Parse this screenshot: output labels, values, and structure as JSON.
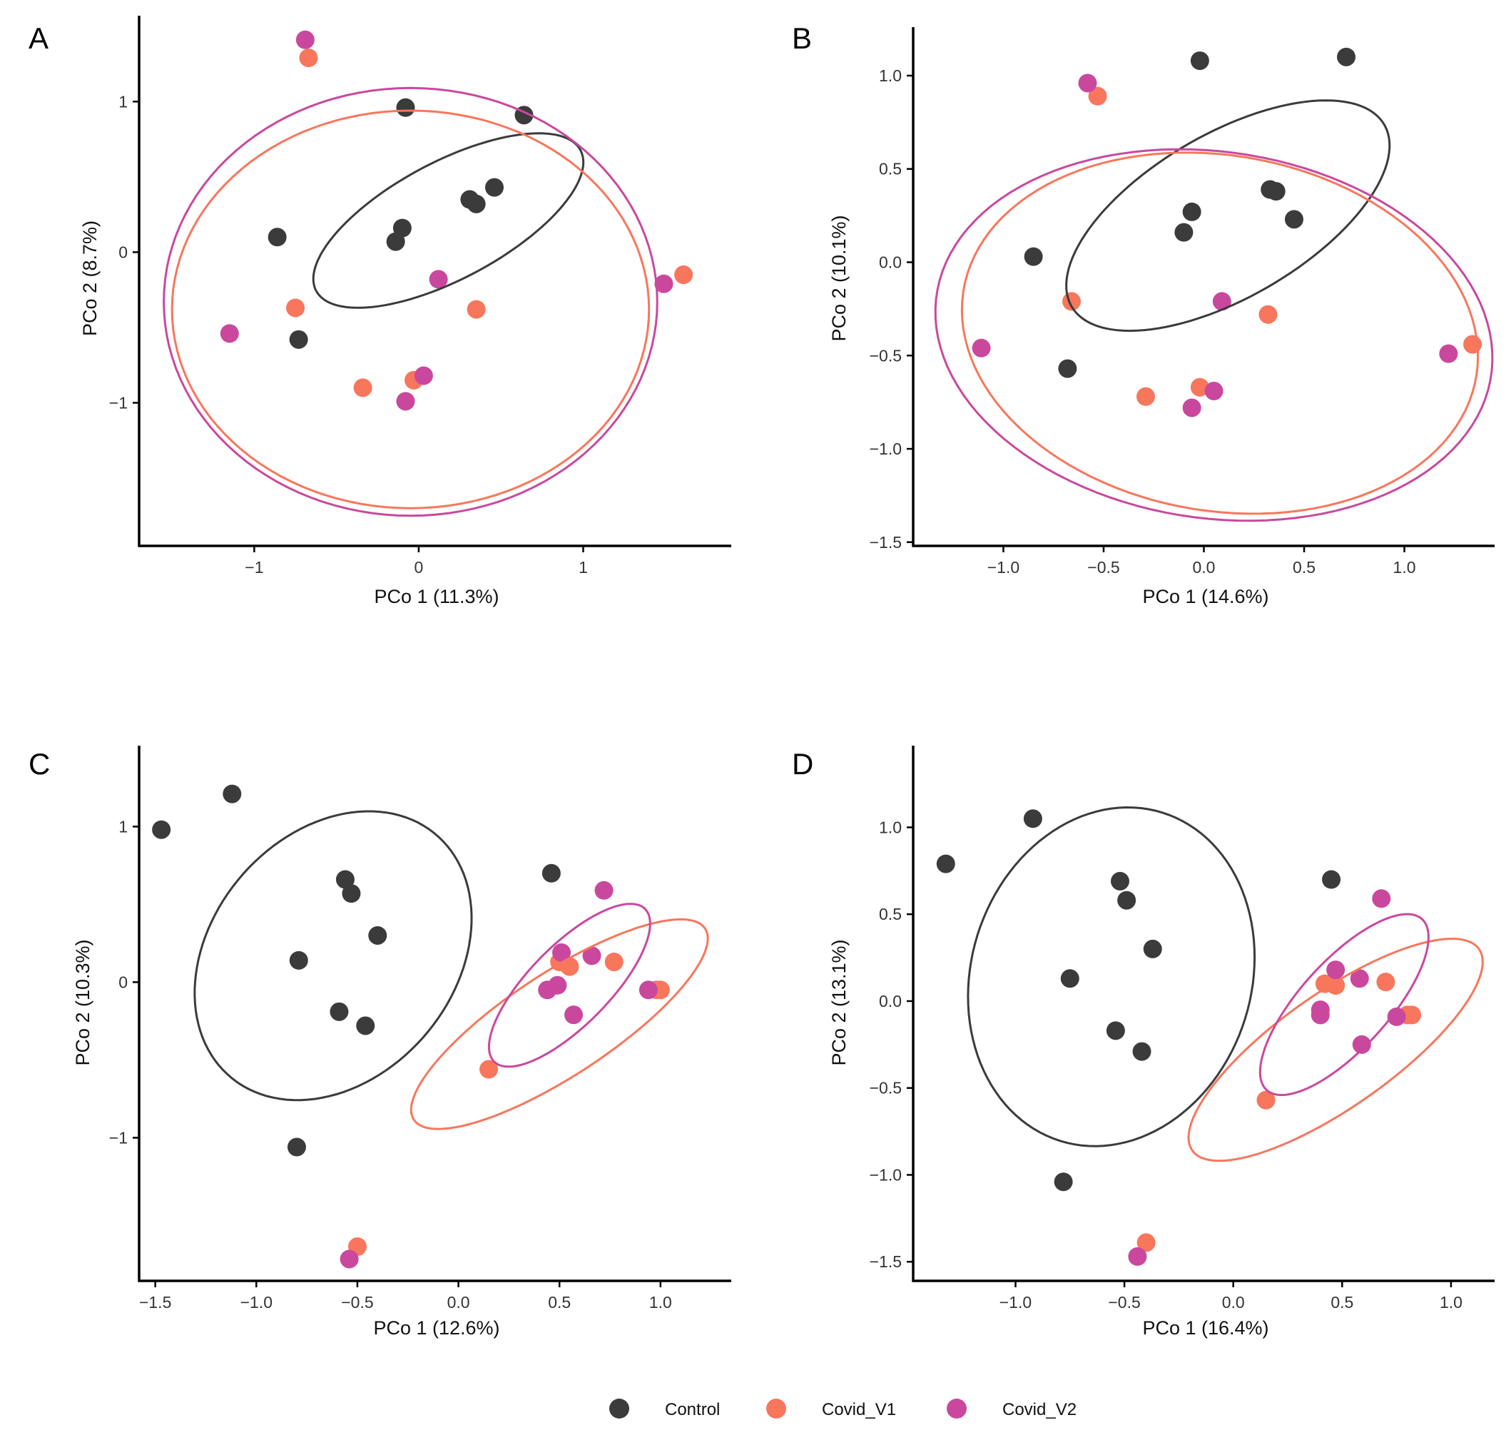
{
  "legend": {
    "items": [
      {
        "label": "Control",
        "color": "#3b3b3b"
      },
      {
        "label": "Covid_V1",
        "color": "#f8765c"
      },
      {
        "label": "Covid_V2",
        "color": "#c9489e"
      }
    ]
  },
  "chart_data": [
    {
      "panel": "A",
      "type": "scatter",
      "title": "",
      "xlabel": "PCo 1 (11.3%)",
      "ylabel": "PCo 2 (8.7%)",
      "xlim": [
        -1.7,
        1.9
      ],
      "ylim": [
        -1.95,
        1.57
      ],
      "xticks": [
        {
          "value": -1,
          "label": "−1"
        },
        {
          "value": 0,
          "label": "0"
        },
        {
          "value": 1,
          "label": "1"
        }
      ],
      "yticks": [
        {
          "value": -1,
          "label": "−1"
        },
        {
          "value": 0,
          "label": "0"
        },
        {
          "value": 1,
          "label": "1"
        }
      ],
      "series": [
        {
          "name": "Control",
          "color": "#3b3b3b",
          "points": [
            [
              -0.08,
              0.96
            ],
            [
              0.64,
              0.91
            ],
            [
              0.46,
              0.43
            ],
            [
              0.31,
              0.35
            ],
            [
              0.35,
              0.32
            ],
            [
              -0.1,
              0.16
            ],
            [
              -0.14,
              0.07
            ],
            [
              -0.86,
              0.1
            ],
            [
              -0.73,
              -0.58
            ]
          ],
          "ellipse": {
            "cx": 0.18,
            "cy": 0.21,
            "rx": 0.93,
            "ry": 0.38,
            "angle_deg": 31
          }
        },
        {
          "name": "Covid_V1",
          "color": "#f8765c",
          "points": [
            [
              -0.67,
              1.29
            ],
            [
              1.61,
              -0.15
            ],
            [
              -0.75,
              -0.37
            ],
            [
              0.35,
              -0.38
            ],
            [
              -0.34,
              -0.9
            ],
            [
              -0.03,
              -0.85
            ]
          ],
          "ellipse": {
            "cx": -0.05,
            "cy": -0.38,
            "rx": 1.45,
            "ry": 1.32,
            "angle_deg": 0
          }
        },
        {
          "name": "Covid_V2",
          "color": "#c9489e",
          "points": [
            [
              -0.69,
              1.41
            ],
            [
              1.49,
              -0.21
            ],
            [
              0.12,
              -0.18
            ],
            [
              -1.15,
              -0.54
            ],
            [
              0.03,
              -0.82
            ],
            [
              -0.08,
              -0.99
            ]
          ],
          "ellipse": {
            "cx": -0.05,
            "cy": -0.33,
            "rx": 1.5,
            "ry": 1.42,
            "angle_deg": 0
          }
        }
      ]
    },
    {
      "panel": "B",
      "type": "scatter",
      "title": "",
      "xlabel": "PCo 1 (14.6%)",
      "ylabel": "PCo 2 (10.1%)",
      "xlim": [
        -1.45,
        1.45
      ],
      "ylim": [
        -1.52,
        1.26
      ],
      "xticks": [
        {
          "value": -1.0,
          "label": "−1.0"
        },
        {
          "value": -0.5,
          "label": "−0.5"
        },
        {
          "value": 0.0,
          "label": "0.0"
        },
        {
          "value": 0.5,
          "label": "0.5"
        },
        {
          "value": 1.0,
          "label": "1.0"
        }
      ],
      "yticks": [
        {
          "value": -1.5,
          "label": "−1.5"
        },
        {
          "value": -1.0,
          "label": "−1.0"
        },
        {
          "value": -0.5,
          "label": "−0.5"
        },
        {
          "value": 0.0,
          "label": "0.0"
        },
        {
          "value": 0.5,
          "label": "0.5"
        },
        {
          "value": 1.0,
          "label": "1.0"
        }
      ],
      "series": [
        {
          "name": "Control",
          "color": "#3b3b3b",
          "points": [
            [
              -0.02,
              1.08
            ],
            [
              0.71,
              1.1
            ],
            [
              0.33,
              0.39
            ],
            [
              0.36,
              0.38
            ],
            [
              0.45,
              0.23
            ],
            [
              -0.06,
              0.27
            ],
            [
              -0.1,
              0.16
            ],
            [
              -0.85,
              0.03
            ],
            [
              -0.68,
              -0.57
            ]
          ],
          "ellipse": {
            "cx": 0.12,
            "cy": 0.25,
            "rx": 0.92,
            "ry": 0.43,
            "angle_deg": 33
          }
        },
        {
          "name": "Covid_V1",
          "color": "#f8765c",
          "points": [
            [
              -0.53,
              0.89
            ],
            [
              1.34,
              -0.44
            ],
            [
              -0.66,
              -0.21
            ],
            [
              0.32,
              -0.28
            ],
            [
              -0.29,
              -0.72
            ],
            [
              -0.02,
              -0.67
            ]
          ],
          "ellipse": {
            "cx": 0.08,
            "cy": -0.38,
            "rx": 1.3,
            "ry": 0.95,
            "angle_deg": -12
          }
        },
        {
          "name": "Covid_V2",
          "color": "#c9489e",
          "points": [
            [
              -0.58,
              0.96
            ],
            [
              1.22,
              -0.49
            ],
            [
              0.09,
              -0.21
            ],
            [
              -1.11,
              -0.46
            ],
            [
              0.05,
              -0.69
            ],
            [
              -0.06,
              -0.78
            ]
          ],
          "ellipse": {
            "cx": 0.05,
            "cy": -0.39,
            "rx": 1.4,
            "ry": 0.98,
            "angle_deg": -10
          }
        }
      ]
    },
    {
      "panel": "C",
      "type": "scatter",
      "title": "",
      "xlabel": "PCo 1 (12.6%)",
      "ylabel": "PCo 2 (10.3%)",
      "xlim": [
        -1.58,
        1.35
      ],
      "ylim": [
        -1.92,
        1.52
      ],
      "xticks": [
        {
          "value": -1.5,
          "label": "−1.5"
        },
        {
          "value": -1.0,
          "label": "−1.0"
        },
        {
          "value": -0.5,
          "label": "−0.5"
        },
        {
          "value": 0.0,
          "label": "0.0"
        },
        {
          "value": 0.5,
          "label": "0.5"
        },
        {
          "value": 1.0,
          "label": "1.0"
        }
      ],
      "yticks": [
        {
          "value": -1,
          "label": "−1"
        },
        {
          "value": 0,
          "label": "0"
        },
        {
          "value": 1,
          "label": "1"
        }
      ],
      "series": [
        {
          "name": "Control",
          "color": "#3b3b3b",
          "points": [
            [
              -1.47,
              0.98
            ],
            [
              -1.12,
              1.21
            ],
            [
              -0.56,
              0.66
            ],
            [
              -0.53,
              0.57
            ],
            [
              -0.4,
              0.3
            ],
            [
              -0.79,
              0.14
            ],
            [
              -0.59,
              -0.19
            ],
            [
              -0.46,
              -0.28
            ],
            [
              -0.8,
              -1.06
            ],
            [
              0.46,
              0.7
            ]
          ],
          "ellipse": {
            "cx": -0.62,
            "cy": 0.17,
            "rx": 0.64,
            "ry": 0.96,
            "angle_deg": -20
          }
        },
        {
          "name": "Covid_V1",
          "color": "#f8765c",
          "points": [
            [
              -0.5,
              -1.7
            ],
            [
              0.15,
              -0.56
            ],
            [
              0.5,
              0.13
            ],
            [
              0.55,
              0.1
            ],
            [
              0.77,
              0.13
            ],
            [
              0.98,
              -0.05
            ],
            [
              1.0,
              -0.05
            ]
          ],
          "ellipse": {
            "cx": 0.5,
            "cy": -0.27,
            "rx": 0.95,
            "ry": 0.3,
            "angle_deg": 42
          }
        },
        {
          "name": "Covid_V2",
          "color": "#c9489e",
          "points": [
            [
              -0.54,
              -1.78
            ],
            [
              0.72,
              0.59
            ],
            [
              0.51,
              0.19
            ],
            [
              0.66,
              0.17
            ],
            [
              0.44,
              -0.05
            ],
            [
              0.49,
              -0.02
            ],
            [
              0.57,
              -0.21
            ],
            [
              0.94,
              -0.05
            ]
          ],
          "ellipse": {
            "cx": 0.55,
            "cy": -0.02,
            "rx": 0.62,
            "ry": 0.22,
            "angle_deg": 55
          }
        }
      ]
    },
    {
      "panel": "D",
      "type": "scatter",
      "title": "",
      "xlabel": "PCo 1 (16.4%)",
      "ylabel": "PCo 2 (13.1%)",
      "xlim": [
        -1.47,
        1.2
      ],
      "ylim": [
        -1.61,
        1.47
      ],
      "xticks": [
        {
          "value": -1.0,
          "label": "−1.0"
        },
        {
          "value": -0.5,
          "label": "−0.5"
        },
        {
          "value": 0.0,
          "label": "0.0"
        },
        {
          "value": 0.5,
          "label": "0.5"
        },
        {
          "value": 1.0,
          "label": "1.0"
        }
      ],
      "yticks": [
        {
          "value": -1.5,
          "label": "−1.5"
        },
        {
          "value": -1.0,
          "label": "−1.0"
        },
        {
          "value": -0.5,
          "label": "−0.5"
        },
        {
          "value": 0.0,
          "label": "0.0"
        },
        {
          "value": 0.5,
          "label": "0.5"
        },
        {
          "value": 1.0,
          "label": "1.0"
        }
      ],
      "series": [
        {
          "name": "Control",
          "color": "#3b3b3b",
          "points": [
            [
              -1.32,
              0.79
            ],
            [
              -0.92,
              1.05
            ],
            [
              -0.52,
              0.69
            ],
            [
              -0.49,
              0.58
            ],
            [
              -0.37,
              0.3
            ],
            [
              -0.75,
              0.13
            ],
            [
              -0.54,
              -0.17
            ],
            [
              -0.42,
              -0.29
            ],
            [
              -0.78,
              -1.04
            ],
            [
              0.45,
              0.7
            ]
          ],
          "ellipse": {
            "cx": -0.56,
            "cy": 0.14,
            "rx": 0.65,
            "ry": 0.98,
            "angle_deg": -8
          }
        },
        {
          "name": "Covid_V1",
          "color": "#f8765c",
          "points": [
            [
              -0.4,
              -1.39
            ],
            [
              0.15,
              -0.57
            ],
            [
              0.42,
              0.1
            ],
            [
              0.47,
              0.09
            ],
            [
              0.7,
              0.11
            ],
            [
              0.8,
              -0.08
            ],
            [
              0.82,
              -0.08
            ]
          ],
          "ellipse": {
            "cx": 0.47,
            "cy": -0.28,
            "rx": 0.88,
            "ry": 0.3,
            "angle_deg": 43
          }
        },
        {
          "name": "Covid_V2",
          "color": "#c9489e",
          "points": [
            [
              -0.44,
              -1.47
            ],
            [
              0.68,
              0.59
            ],
            [
              0.47,
              0.18
            ],
            [
              0.58,
              0.13
            ],
            [
              0.4,
              -0.05
            ],
            [
              0.4,
              -0.08
            ],
            [
              0.59,
              -0.25
            ],
            [
              0.75,
              -0.09
            ]
          ],
          "ellipse": {
            "cx": 0.51,
            "cy": -0.02,
            "rx": 0.61,
            "ry": 0.22,
            "angle_deg": 56
          }
        }
      ]
    }
  ]
}
